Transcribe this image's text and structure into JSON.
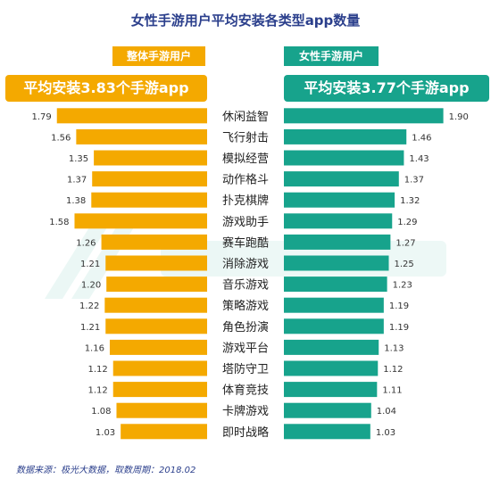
{
  "title": "女性手游用户平均安装各类型app数量",
  "groups": {
    "left": {
      "label": "整体手游用户",
      "banner": "平均安装3.83个手游app",
      "color": "#f4a900"
    },
    "right": {
      "label": "女性手游用户",
      "banner": "平均安装3.77个手游app",
      "color": "#17a38c"
    }
  },
  "source": "数据来源：极光大数据，取数周期：2018.02",
  "chart_data": {
    "type": "bar",
    "categories": [
      "休闲益智",
      "飞行射击",
      "模拟经营",
      "动作格斗",
      "扑克棋牌",
      "游戏助手",
      "赛车跑酷",
      "消除游戏",
      "音乐游戏",
      "策略游戏",
      "角色扮演",
      "游戏平台",
      "塔防守卫",
      "体育竞技",
      "卡牌游戏",
      "即时战略"
    ],
    "series": [
      {
        "name": "整体手游用户",
        "color": "#f4a900",
        "direction": "left",
        "values": [
          1.79,
          1.56,
          1.35,
          1.37,
          1.38,
          1.58,
          1.26,
          1.21,
          1.2,
          1.22,
          1.21,
          1.16,
          1.12,
          1.12,
          1.08,
          1.03
        ]
      },
      {
        "name": "女性手游用户",
        "color": "#17a38c",
        "direction": "right",
        "values": [
          1.9,
          1.46,
          1.43,
          1.37,
          1.32,
          1.29,
          1.27,
          1.25,
          1.23,
          1.19,
          1.19,
          1.13,
          1.12,
          1.11,
          1.04,
          1.03
        ]
      }
    ],
    "value_labels": {
      "left": [
        "1.79",
        "1.56",
        "1.35",
        "1.37",
        "1.38",
        "1.58",
        "1.26",
        "1.21",
        "1.20",
        "1.22",
        "1.21",
        "1.16",
        "1.12",
        "1.12",
        "1.08",
        "1.03"
      ],
      "right": [
        "1.90",
        "1.46",
        "1.43",
        "1.37",
        "1.32",
        "1.29",
        "1.27",
        "1.25",
        "1.23",
        "1.19",
        "1.19",
        "1.13",
        "1.12",
        "1.11",
        "1.04",
        "1.03"
      ]
    },
    "xlim": [
      0,
      2.0
    ],
    "grid": false
  }
}
